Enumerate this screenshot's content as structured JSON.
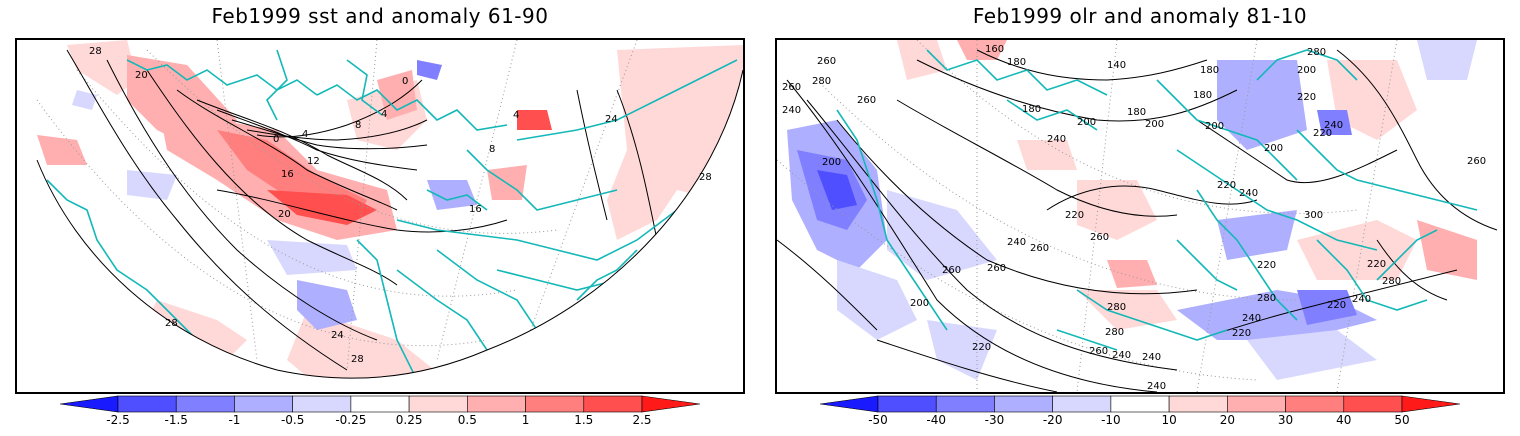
{
  "panels": [
    {
      "title": "Feb1999 sst and anomaly 61-90",
      "contour_labels": [
        "28",
        "20",
        "0",
        "4",
        "8",
        "12",
        "16",
        "20",
        "24",
        "28",
        "28",
        "4",
        "0",
        "16",
        "24",
        "28",
        "8",
        "4"
      ],
      "colorbar": {
        "labels": [
          "-2.5",
          "-1.5",
          "-1",
          "-0.5",
          "-0.25",
          "0.25",
          "0.5",
          "1",
          "1.5",
          "2.5"
        ],
        "colors": [
          "#1a1aff",
          "#4f4fff",
          "#7f7fff",
          "#afafff",
          "#d8d8ff",
          "#ffffff",
          "#ffd8d8",
          "#ffafaf",
          "#ff7f7f",
          "#ff4f4f",
          "#ff1a1a"
        ]
      }
    },
    {
      "title": "Feb1999 olr and anomaly 81-10",
      "contour_labels": [
        "260",
        "260",
        "280",
        "240",
        "260",
        "200",
        "160",
        "180",
        "140",
        "180",
        "200",
        "180",
        "200",
        "180",
        "200",
        "180",
        "220",
        "240",
        "220",
        "280",
        "200",
        "200",
        "220",
        "240",
        "300",
        "260",
        "220",
        "240",
        "260",
        "260",
        "240",
        "260",
        "280",
        "220",
        "240",
        "220",
        "280",
        "200",
        "220",
        "260",
        "240",
        "240",
        "260",
        "280",
        "220",
        "280",
        "240",
        "220",
        "240"
      ],
      "colorbar": {
        "labels": [
          "-50",
          "-40",
          "-30",
          "-20",
          "-10",
          "10",
          "20",
          "30",
          "40",
          "50"
        ],
        "colors": [
          "#1a1aff",
          "#4f4fff",
          "#7f7fff",
          "#afafff",
          "#d8d8ff",
          "#ffffff",
          "#ffd8d8",
          "#ffafaf",
          "#ff7f7f",
          "#ff4f4f",
          "#ff1a1a"
        ]
      }
    }
  ]
}
